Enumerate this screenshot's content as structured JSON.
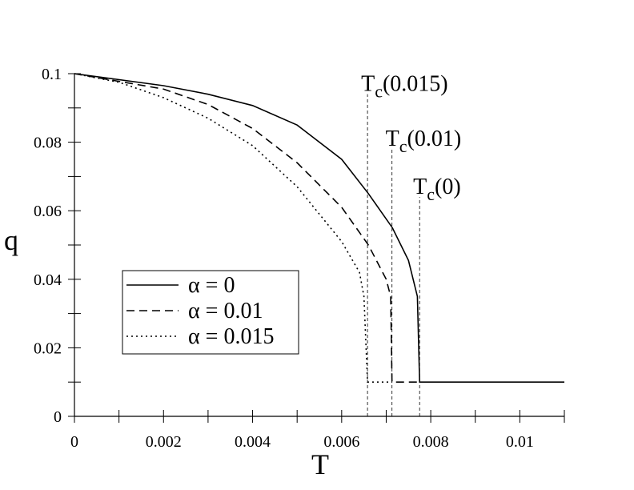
{
  "chart_data": {
    "type": "line",
    "xlabel": "T",
    "ylabel": "q",
    "xlim": [
      0,
      0.011
    ],
    "ylim": [
      0,
      0.1
    ],
    "xticks": [
      0,
      0.002,
      0.004,
      0.006,
      0.008,
      0.01
    ],
    "yticks": [
      0,
      0.02,
      0.04,
      0.06,
      0.08,
      0.1
    ],
    "xminorticks": [
      0.001,
      0.003,
      0.005,
      0.007,
      0.009,
      0.011
    ],
    "yminorticks": [
      0.01,
      0.03,
      0.05,
      0.07,
      0.09
    ],
    "legend": "lower-left",
    "series": [
      {
        "name": "α = 0",
        "color": "#000000",
        "dash": "solid",
        "x": [
          0,
          0.002,
          0.003,
          0.004,
          0.005,
          0.006,
          0.0066,
          0.00714,
          0.0075,
          0.0077,
          0.00775,
          0.011
        ],
        "values": [
          0.1,
          0.0965,
          0.094,
          0.0907,
          0.085,
          0.075,
          0.065,
          0.055,
          0.0455,
          0.035,
          0.01,
          0.01
        ]
      },
      {
        "name": "α = 0.01",
        "color": "#000000",
        "dash": "dashed",
        "x": [
          0,
          0.002,
          0.003,
          0.004,
          0.005,
          0.006,
          0.0066,
          0.007,
          0.0071,
          0.00713,
          0.00775
        ],
        "values": [
          0.1,
          0.0955,
          0.091,
          0.084,
          0.074,
          0.061,
          0.05,
          0.04,
          0.035,
          0.01,
          0.01
        ]
      },
      {
        "name": "α = 0.015",
        "color": "#000000",
        "dash": "dotted",
        "x": [
          0,
          0.001,
          0.002,
          0.003,
          0.004,
          0.005,
          0.006,
          0.0064,
          0.0065,
          0.00658,
          0.00713
        ],
        "values": [
          0.1,
          0.0975,
          0.093,
          0.087,
          0.079,
          0.067,
          0.051,
          0.042,
          0.035,
          0.01,
          0.01
        ]
      }
    ],
    "annotations": [
      {
        "label": "T",
        "sub": "c",
        "arg": "(0.015)",
        "x": 0.00658,
        "y": 0.094
      },
      {
        "label": "T",
        "sub": "c",
        "arg": "(0.01)",
        "x": 0.00713,
        "y": 0.078
      },
      {
        "label": "T",
        "sub": "c",
        "arg": "(0)",
        "x": 0.00775,
        "y": 0.064
      }
    ]
  }
}
